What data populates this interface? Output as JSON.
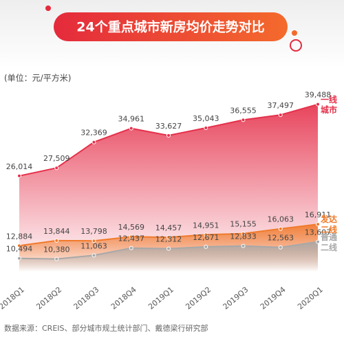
{
  "chart_data": {
    "type": "area",
    "title": "24个重点城市新房均价走势对比",
    "subtitle": "(单位：元/平方米)",
    "source": "数据来源：CREIS、部分城市规土统计部门、戴德梁行研究部",
    "categories": [
      "2018Q1",
      "2018Q2",
      "2018Q3",
      "2018Q4",
      "2019Q1",
      "2019Q2",
      "2019Q3",
      "2019Q4",
      "2020Q1"
    ],
    "ylim": [
      8000,
      41000
    ],
    "series": [
      {
        "name": "一线城市",
        "color": "#e5304a",
        "values": [
          26014,
          27509,
          32369,
          34961,
          33627,
          35043,
          36555,
          37497,
          39488
        ],
        "value_labels": [
          "26,014",
          "27,509",
          "32,369",
          "34,961",
          "33,627",
          "35,043",
          "36,555",
          "37,497",
          "39,488"
        ]
      },
      {
        "name": "发达二线",
        "color": "#f07a2a",
        "values": [
          12884,
          13844,
          13798,
          14569,
          14457,
          14951,
          15155,
          16063,
          16911
        ],
        "value_labels": [
          "12,884",
          "13,844",
          "13,798",
          "14,569",
          "14,457",
          "14,951",
          "15,155",
          "16,063",
          "16,911"
        ]
      },
      {
        "name": "普通二线",
        "color": "#a8a8a8",
        "values": [
          10494,
          10380,
          11063,
          12437,
          12312,
          12671,
          12833,
          12563,
          13607
        ],
        "value_labels": [
          "10,494",
          "10,380",
          "11,063",
          "12,437",
          "12,312",
          "12,671",
          "12,833",
          "12,563",
          "13,607"
        ]
      }
    ]
  }
}
